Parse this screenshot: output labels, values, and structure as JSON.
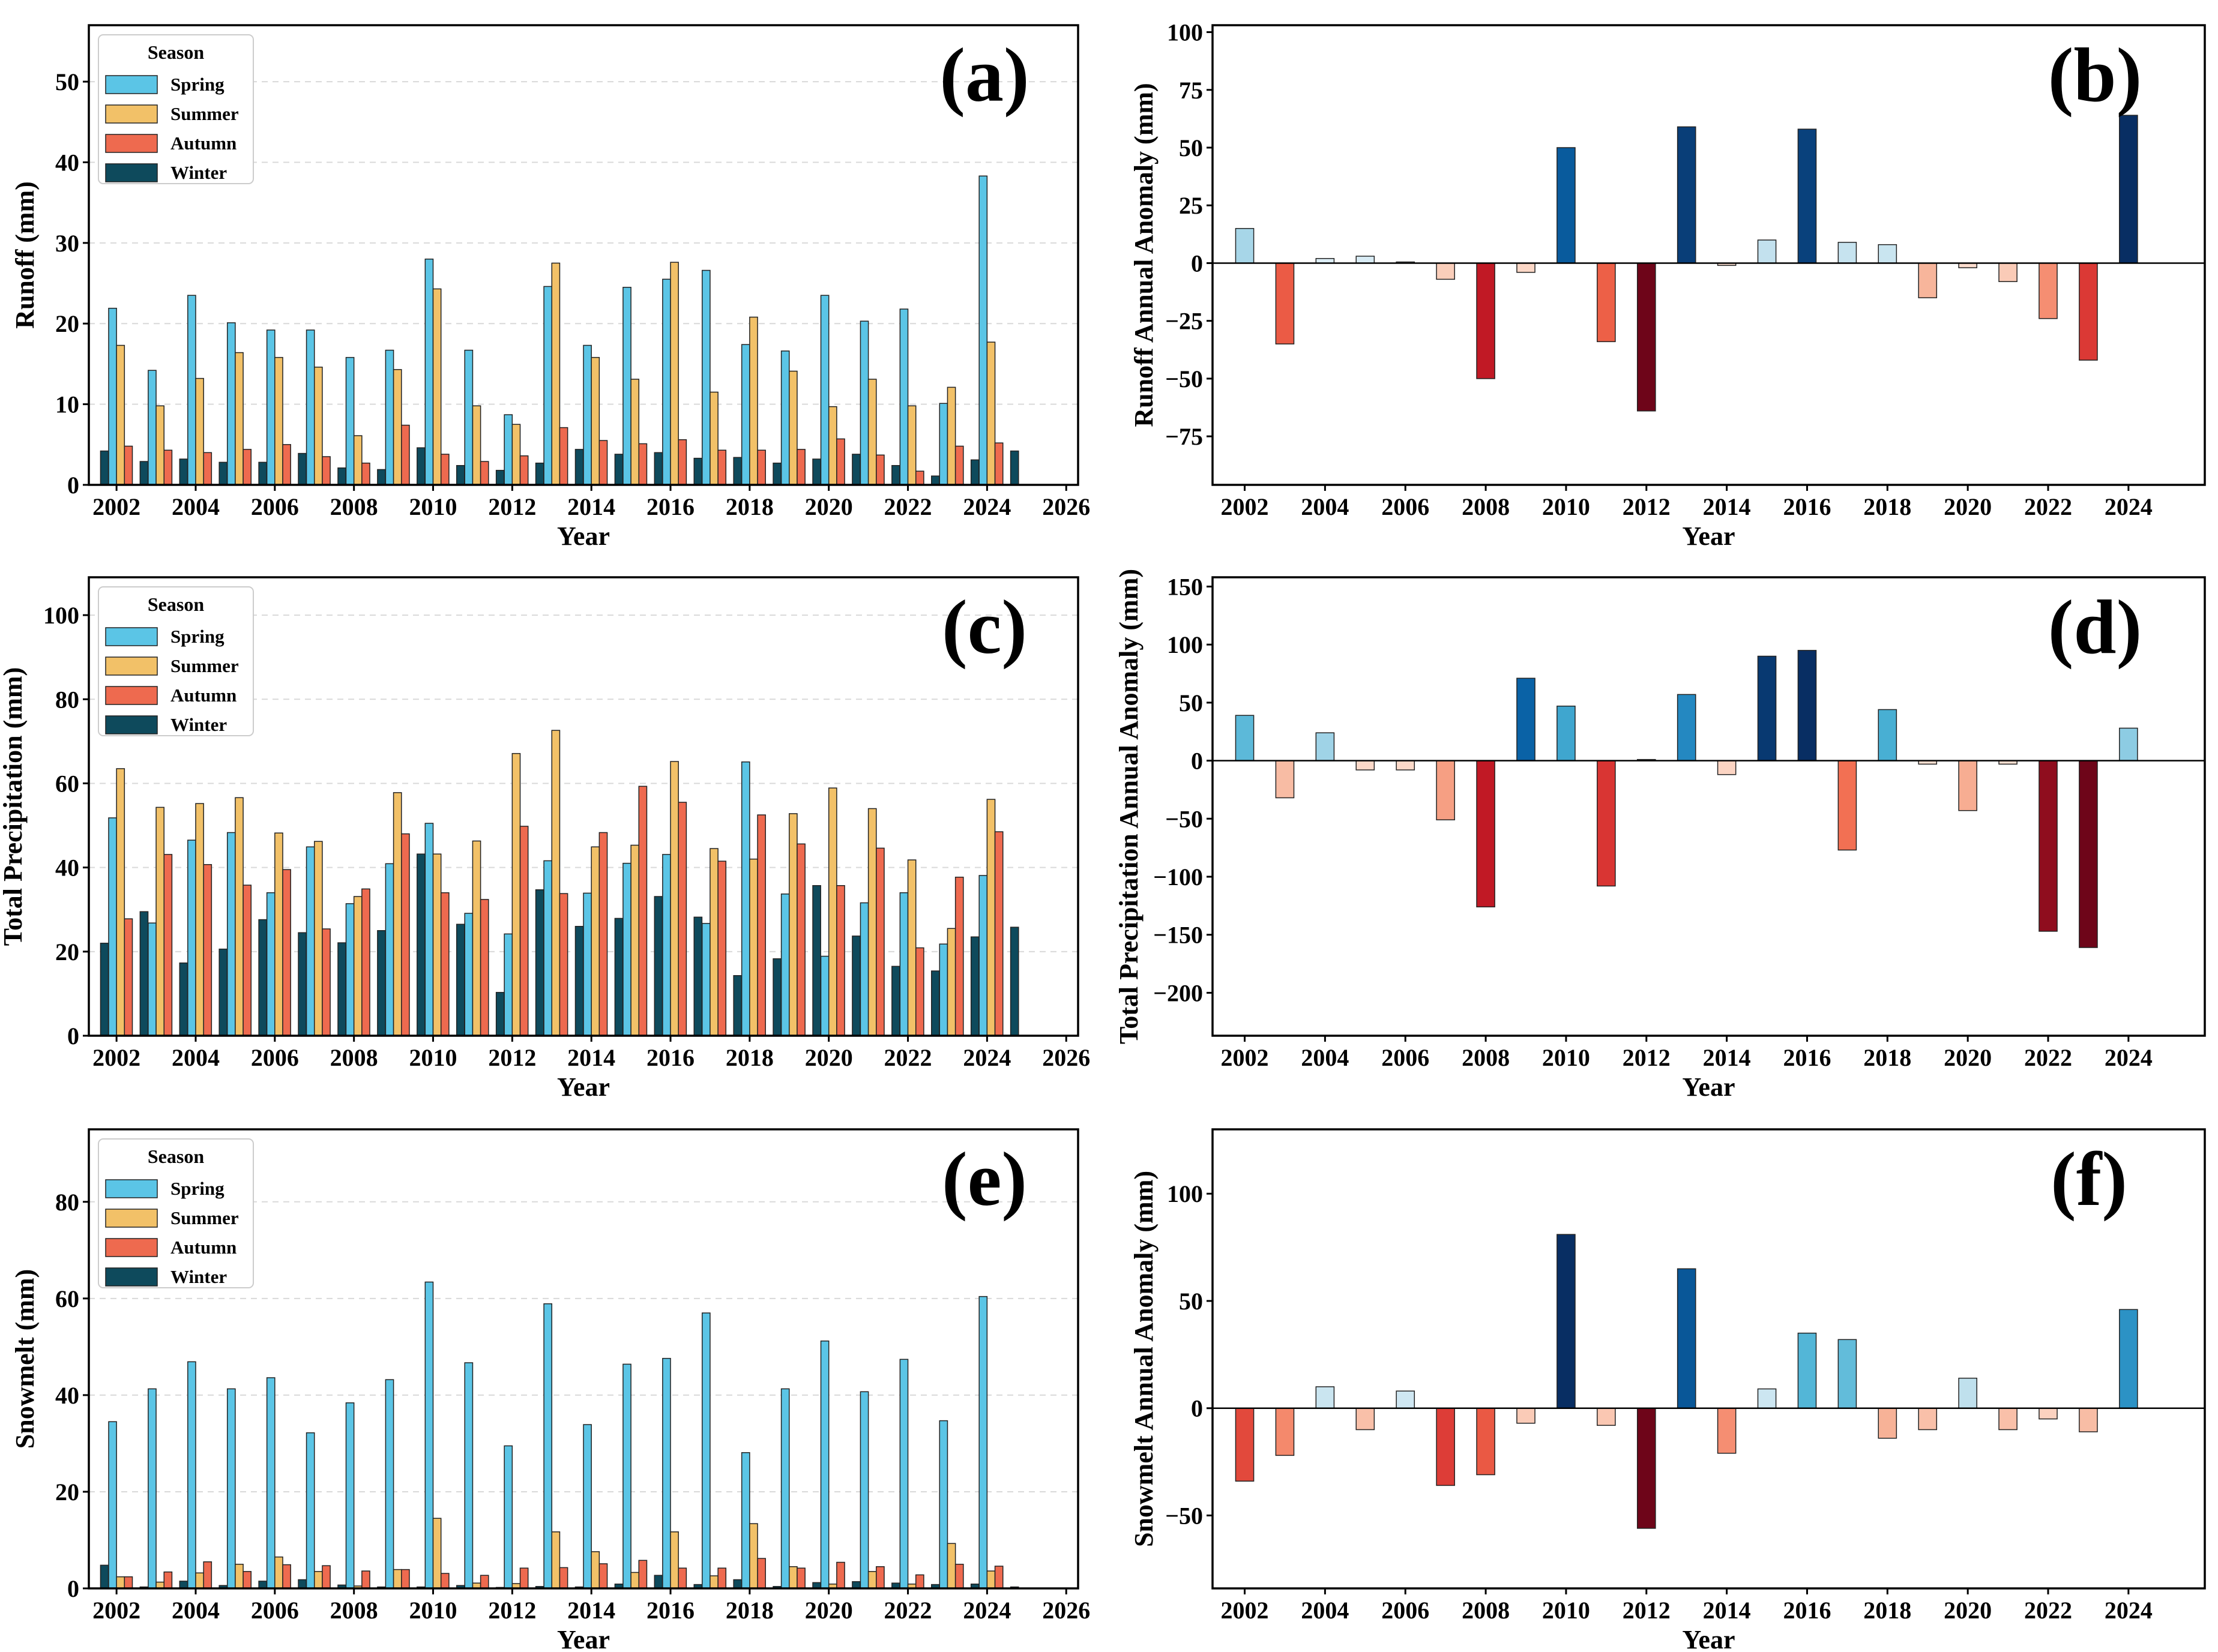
{
  "colors": {
    "Spring": "#5BC5E6",
    "Summer": "#F2C168",
    "Autumn": "#EE6A4F",
    "Winter": "#0E4A5C"
  },
  "legend": {
    "title": "Season",
    "entries": [
      "Spring",
      "Summer",
      "Autumn",
      "Winter"
    ]
  },
  "chart_data": [
    {
      "id": "a",
      "panel_label": "(a)",
      "type": "bar",
      "title": "",
      "xlabel": "Year",
      "ylabel": "Runoff (mm)",
      "xlim": [
        2001.3,
        2026.3
      ],
      "ylim": [
        0,
        57
      ],
      "yticks": [
        0,
        10,
        20,
        30,
        40,
        50
      ],
      "xticks": [
        2002,
        2004,
        2006,
        2008,
        2010,
        2012,
        2014,
        2016,
        2018,
        2020,
        2022,
        2024,
        2026
      ],
      "grid": "y-dashed",
      "legend_position": "top-left",
      "years": [
        2002,
        2003,
        2004,
        2005,
        2006,
        2007,
        2008,
        2009,
        2010,
        2011,
        2012,
        2013,
        2014,
        2015,
        2016,
        2017,
        2018,
        2019,
        2020,
        2021,
        2022,
        2023,
        2024
      ],
      "winter": [
        4.2,
        2.9,
        3.2,
        2.8,
        2.8,
        3.9,
        2.1,
        1.9,
        4.6,
        2.4,
        1.8,
        2.7,
        4.4,
        3.8,
        4.0,
        3.3,
        3.4,
        2.7,
        3.2,
        3.8,
        2.4,
        1.1,
        3.1,
        4.2
      ],
      "series": [
        {
          "name": "Spring",
          "values": [
            21.9,
            14.2,
            23.5,
            20.1,
            19.2,
            19.2,
            15.8,
            16.7,
            28.0,
            16.7,
            8.7,
            24.6,
            17.3,
            24.5,
            25.5,
            26.6,
            17.4,
            16.6,
            23.5,
            20.3,
            21.8,
            10.1,
            38.3
          ]
        },
        {
          "name": "Summer",
          "values": [
            17.3,
            9.8,
            13.2,
            16.4,
            15.8,
            14.6,
            6.1,
            14.3,
            24.3,
            9.8,
            7.5,
            27.5,
            15.8,
            13.1,
            27.6,
            11.5,
            20.8,
            14.1,
            9.7,
            13.1,
            9.8,
            12.1,
            17.7
          ]
        },
        {
          "name": "Autumn",
          "values": [
            4.8,
            4.3,
            4.0,
            4.4,
            5.0,
            3.5,
            2.7,
            7.4,
            3.8,
            2.9,
            3.6,
            7.1,
            5.5,
            5.1,
            5.6,
            4.3,
            4.3,
            4.4,
            5.7,
            3.7,
            1.7,
            4.8,
            5.2
          ]
        }
      ]
    },
    {
      "id": "b",
      "panel_label": "(b)",
      "type": "bar",
      "title": "",
      "xlabel": "Year",
      "ylabel": "Runoff Annual Anomaly (mm)",
      "xlim": [
        2001.2,
        2025.9
      ],
      "ylim": [
        -96,
        103
      ],
      "yticks": [
        -75,
        -50,
        -25,
        0,
        25,
        50,
        75,
        100
      ],
      "xticks": [
        2002,
        2004,
        2006,
        2008,
        2010,
        2012,
        2014,
        2016,
        2018,
        2020,
        2022,
        2024
      ],
      "zero_line": true,
      "years": [
        2002,
        2003,
        2004,
        2005,
        2006,
        2007,
        2008,
        2009,
        2010,
        2011,
        2012,
        2013,
        2014,
        2015,
        2016,
        2017,
        2018,
        2019,
        2020,
        2021,
        2022,
        2023,
        2024
      ],
      "values": [
        15,
        -35,
        2,
        3,
        0.5,
        -7,
        -50,
        -4,
        50,
        -34,
        -64,
        59,
        -1,
        10,
        58,
        9,
        8,
        -15,
        -2,
        -8,
        -24,
        -42,
        64
      ]
    },
    {
      "id": "c",
      "panel_label": "(c)",
      "type": "bar",
      "title": "",
      "xlabel": "Year",
      "ylabel": "Total Precipitation (mm)",
      "xlim": [
        2001.3,
        2026.3
      ],
      "ylim": [
        0,
        109
      ],
      "yticks": [
        0,
        20,
        40,
        60,
        80,
        100
      ],
      "xticks": [
        2002,
        2004,
        2006,
        2008,
        2010,
        2012,
        2014,
        2016,
        2018,
        2020,
        2022,
        2024,
        2026
      ],
      "grid": "y-dashed",
      "legend_position": "top-left",
      "years": [
        2002,
        2003,
        2004,
        2005,
        2006,
        2007,
        2008,
        2009,
        2010,
        2011,
        2012,
        2013,
        2014,
        2015,
        2016,
        2017,
        2018,
        2019,
        2020,
        2021,
        2022,
        2023,
        2024
      ],
      "winter": [
        22.0,
        29.5,
        17.3,
        20.6,
        27.6,
        24.5,
        22.1,
        25.0,
        43.2,
        26.5,
        10.3,
        34.7,
        26.0,
        27.9,
        33.1,
        28.2,
        14.3,
        18.3,
        35.7,
        23.7,
        16.5,
        15.4,
        23.5,
        25.8
      ],
      "series": [
        {
          "name": "Spring",
          "values": [
            51.8,
            26.8,
            46.5,
            48.3,
            34.0,
            44.9,
            31.4,
            40.9,
            50.5,
            29.1,
            24.2,
            41.6,
            33.9,
            41.0,
            43.1,
            26.7,
            65.1,
            33.7,
            18.9,
            31.6,
            34.0,
            21.8,
            38.1
          ]
        },
        {
          "name": "Summer",
          "values": [
            63.5,
            54.3,
            55.2,
            56.6,
            48.2,
            46.2,
            33.1,
            57.8,
            43.2,
            46.3,
            67.1,
            72.6,
            44.9,
            45.3,
            65.2,
            44.5,
            42.0,
            52.8,
            58.9,
            54.0,
            41.8,
            25.5,
            56.2
          ]
        },
        {
          "name": "Autumn",
          "values": [
            27.8,
            43.1,
            40.7,
            35.8,
            39.5,
            25.4,
            34.9,
            48.0,
            34.0,
            32.4,
            49.8,
            33.8,
            48.3,
            59.3,
            55.5,
            41.5,
            52.5,
            45.6,
            35.7,
            44.6,
            20.9,
            37.7,
            48.5
          ]
        }
      ]
    },
    {
      "id": "d",
      "panel_label": "(d)",
      "type": "bar",
      "title": "",
      "xlabel": "Year",
      "ylabel": "Total Precipitation Annual Anomaly (mm)",
      "xlim": [
        2001.2,
        2025.9
      ],
      "ylim": [
        -237,
        158
      ],
      "yticks": [
        -200,
        -150,
        -100,
        -50,
        0,
        50,
        100,
        150
      ],
      "xticks": [
        2002,
        2004,
        2006,
        2008,
        2010,
        2012,
        2014,
        2016,
        2018,
        2020,
        2022,
        2024
      ],
      "zero_line": true,
      "years": [
        2002,
        2003,
        2004,
        2005,
        2006,
        2007,
        2008,
        2009,
        2010,
        2011,
        2012,
        2013,
        2014,
        2015,
        2016,
        2017,
        2018,
        2019,
        2020,
        2021,
        2022,
        2023,
        2024
      ],
      "values": [
        39,
        -32,
        24,
        -8,
        -8,
        -51,
        -126,
        71,
        47,
        -108,
        1,
        57,
        -12,
        90,
        95,
        -77,
        44,
        -3,
        -43,
        -3,
        -147,
        -161,
        28
      ]
    },
    {
      "id": "e",
      "panel_label": "(e)",
      "type": "bar",
      "title": "",
      "xlabel": "Year",
      "ylabel": "Snowmelt (mm)",
      "xlim": [
        2001.3,
        2026.3
      ],
      "ylim": [
        0,
        95
      ],
      "yticks": [
        0,
        20,
        40,
        60,
        80
      ],
      "xticks": [
        2002,
        2004,
        2006,
        2008,
        2010,
        2012,
        2014,
        2016,
        2018,
        2020,
        2022,
        2024,
        2026
      ],
      "grid": "y-dashed",
      "legend_position": "top-left",
      "years": [
        2002,
        2003,
        2004,
        2005,
        2006,
        2007,
        2008,
        2009,
        2010,
        2011,
        2012,
        2013,
        2014,
        2015,
        2016,
        2017,
        2018,
        2019,
        2020,
        2021,
        2022,
        2023,
        2024
      ],
      "winter": [
        4.8,
        0.3,
        1.5,
        0.6,
        1.5,
        1.8,
        0.7,
        0.3,
        0.3,
        0.6,
        0.2,
        0.4,
        0.3,
        0.9,
        2.7,
        0.8,
        1.8,
        0.4,
        1.2,
        1.4,
        1.1,
        0.8,
        0.9,
        0.3
      ],
      "series": [
        {
          "name": "Spring",
          "values": [
            34.5,
            41.3,
            46.9,
            41.3,
            43.6,
            32.2,
            38.4,
            43.2,
            63.4,
            46.7,
            29.5,
            58.9,
            33.9,
            46.4,
            47.6,
            57.0,
            28.1,
            41.3,
            51.2,
            40.7,
            47.4,
            34.7,
            60.4
          ]
        },
        {
          "name": "Summer",
          "values": [
            2.4,
            1.3,
            3.2,
            5.0,
            6.5,
            3.5,
            0.5,
            3.9,
            14.5,
            1.1,
            1.0,
            11.7,
            7.6,
            3.3,
            11.7,
            2.6,
            13.4,
            4.5,
            0.9,
            3.5,
            0.9,
            9.3,
            3.6
          ]
        },
        {
          "name": "Autumn",
          "values": [
            2.4,
            3.4,
            5.5,
            3.5,
            4.9,
            4.7,
            3.6,
            3.9,
            3.1,
            2.7,
            4.2,
            4.3,
            5.1,
            5.8,
            4.2,
            4.2,
            6.2,
            4.2,
            5.4,
            4.5,
            2.8,
            5.0,
            4.6
          ]
        }
      ]
    },
    {
      "id": "f",
      "panel_label": "(f)",
      "type": "bar",
      "title": "",
      "xlabel": "Year",
      "ylabel": "Snowmelt Annual Anomaly (mm)",
      "xlim": [
        2001.2,
        2025.9
      ],
      "ylim": [
        -84,
        130
      ],
      "yticks": [
        -50,
        0,
        50,
        100
      ],
      "xticks": [
        2002,
        2004,
        2006,
        2008,
        2010,
        2012,
        2014,
        2016,
        2018,
        2020,
        2022,
        2024
      ],
      "zero_line": true,
      "years": [
        2002,
        2003,
        2004,
        2005,
        2006,
        2007,
        2008,
        2009,
        2010,
        2011,
        2012,
        2013,
        2014,
        2015,
        2016,
        2017,
        2018,
        2019,
        2020,
        2021,
        2022,
        2023,
        2024
      ],
      "values": [
        -34,
        -22,
        10,
        -10,
        8,
        -36,
        -31,
        -7,
        81,
        -8,
        -56,
        65,
        -21,
        9,
        35,
        32,
        -14,
        -10,
        14,
        -10,
        -5,
        -11,
        46
      ]
    }
  ]
}
